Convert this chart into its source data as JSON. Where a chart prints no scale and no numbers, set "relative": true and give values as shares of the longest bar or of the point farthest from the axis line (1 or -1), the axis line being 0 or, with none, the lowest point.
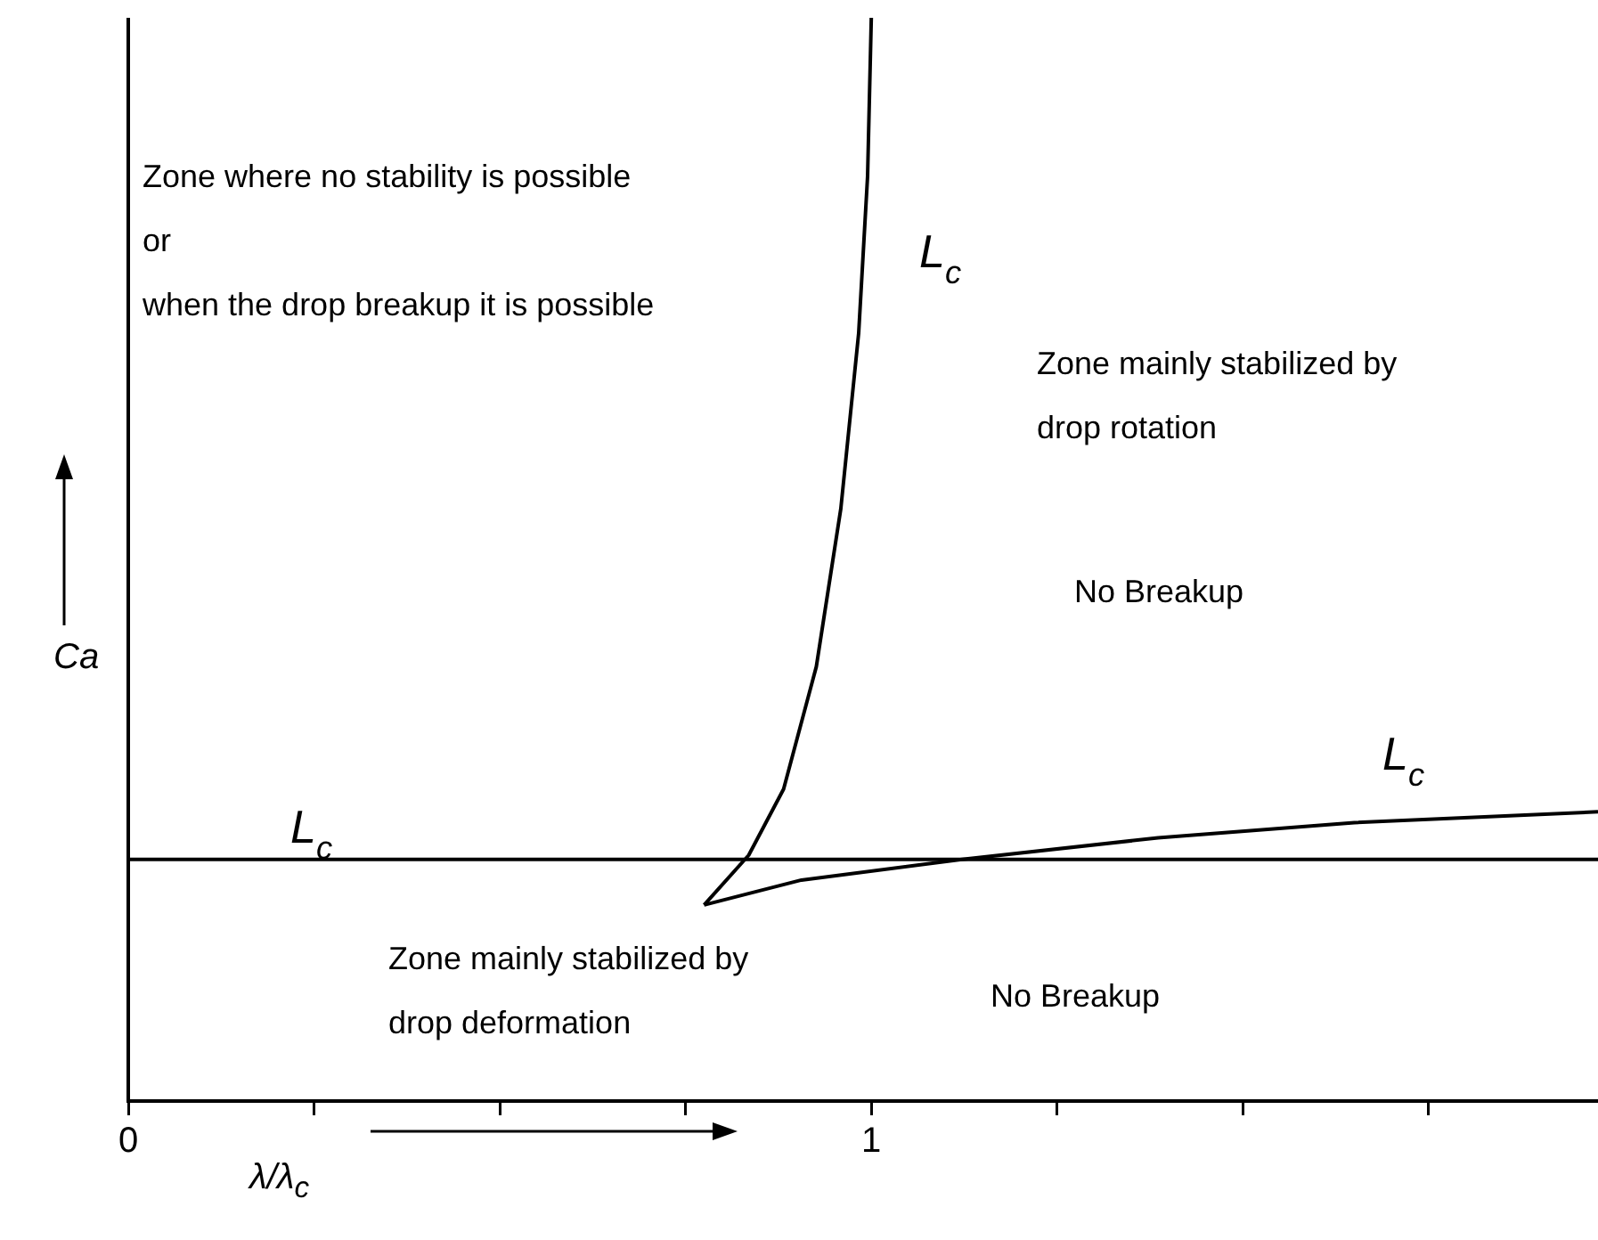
{
  "chart_data": {
    "type": "line",
    "relative": true,
    "xlabel": "λ/λ$_{c}$",
    "ylabel": "Ca",
    "xlim": [
      0,
      1.978
    ],
    "xticks": [
      0,
      {
        "value": 0.25,
        "label": null
      },
      {
        "value": 0.5,
        "label": null
      },
      {
        "value": 0.75,
        "label": null
      },
      1,
      {
        "value": 1.25,
        "label": null
      },
      {
        "value": 1.5,
        "label": null
      },
      {
        "value": 1.75,
        "label": null
      }
    ],
    "tick_labels": "x",
    "grid": false,
    "legend": false,
    "marker": "none",
    "line_style": "solid",
    "series": [
      {
        "color": "#000000",
        "x": [
          0,
          1.978
        ],
        "values": [
          0.223,
          0.223
        ]
      },
      {
        "color": "#000000",
        "x": [
          0.775,
          0.835,
          0.882,
          0.926,
          0.959,
          0.983,
          0.995,
          1.0
        ],
        "values": [
          0.181,
          0.227,
          0.288,
          0.401,
          0.547,
          0.709,
          0.854,
          1.0
        ]
      },
      {
        "color": "#000000",
        "x": [
          0.775,
          0.906,
          1.122,
          1.386,
          1.65,
          1.978
        ],
        "values": [
          0.181,
          0.204,
          0.223,
          0.243,
          0.257,
          0.267
        ]
      }
    ],
    "annotations": [
      "Zone where no stability is possible\nor\nwhen the drop breakup it is possible",
      "Zone mainly stabilized by\ndrop rotation",
      "No Breakup",
      "Zone mainly stabilized by\ndrop deformation",
      "No Breakup",
      "L$_{c}$",
      "L$_{c}$",
      "L$_{c}$"
    ]
  }
}
